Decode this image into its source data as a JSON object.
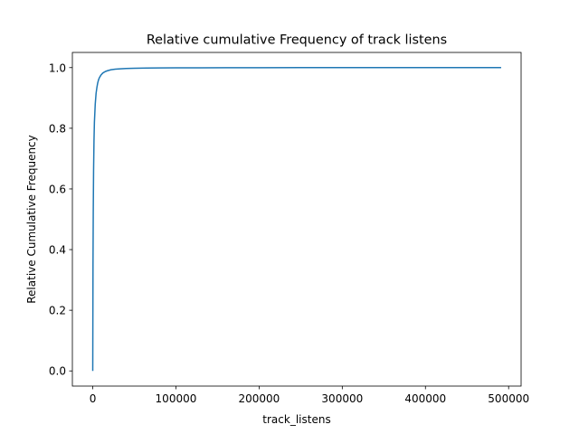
{
  "chart_data": {
    "type": "line",
    "title": "Relative cumulative Frequency of track listens",
    "xlabel": "track_listens",
    "ylabel": "Relative Cumulative Frequency",
    "xlim": [
      -24500,
      515000
    ],
    "ylim": [
      -0.05,
      1.05
    ],
    "xticks": [
      0,
      100000,
      200000,
      300000,
      400000,
      500000
    ],
    "xtick_labels": [
      "0",
      "100000",
      "200000",
      "300000",
      "400000",
      "500000"
    ],
    "yticks": [
      0.0,
      0.2,
      0.4,
      0.6,
      0.8,
      1.0
    ],
    "ytick_labels": [
      "0.0",
      "0.2",
      "0.4",
      "0.6",
      "0.8",
      "1.0"
    ],
    "grid": false,
    "line_color": "#1f77b4",
    "series": [
      {
        "x": [
          0,
          300,
          600,
          1000,
          1500,
          2000,
          3000,
          4000,
          5000,
          6000,
          7000,
          8000,
          10000,
          12000,
          15000,
          18000,
          22000,
          27000,
          33000,
          40000,
          50000,
          65000,
          80000,
          100000,
          130000,
          160000,
          200000,
          250000,
          300000,
          350000,
          400000,
          450000,
          491000
        ],
        "y": [
          0.0,
          0.35,
          0.52,
          0.66,
          0.76,
          0.82,
          0.88,
          0.915,
          0.935,
          0.95,
          0.96,
          0.967,
          0.976,
          0.982,
          0.987,
          0.99,
          0.993,
          0.995,
          0.996,
          0.997,
          0.998,
          0.9985,
          0.999,
          0.9993,
          0.9995,
          0.9997,
          0.9998,
          0.9999,
          0.99993,
          0.99995,
          0.99997,
          0.99999,
          1.0
        ]
      }
    ]
  }
}
